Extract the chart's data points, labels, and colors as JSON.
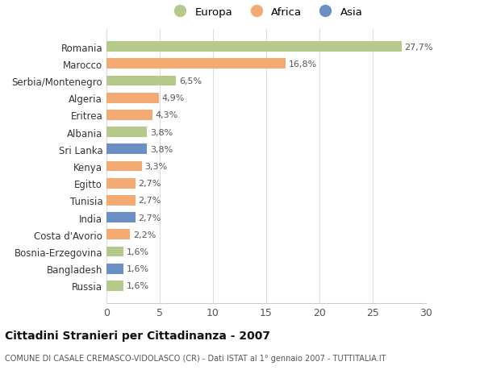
{
  "categories": [
    "Russia",
    "Bangladesh",
    "Bosnia-Erzegovina",
    "Costa d'Avorio",
    "India",
    "Tunisia",
    "Egitto",
    "Kenya",
    "Sri Lanka",
    "Albania",
    "Eritrea",
    "Algeria",
    "Serbia/Montenegro",
    "Marocco",
    "Romania"
  ],
  "values": [
    1.6,
    1.6,
    1.6,
    2.2,
    2.7,
    2.7,
    2.7,
    3.3,
    3.8,
    3.8,
    4.3,
    4.9,
    6.5,
    16.8,
    27.7
  ],
  "labels": [
    "1,6%",
    "1,6%",
    "1,6%",
    "2,2%",
    "2,7%",
    "2,7%",
    "2,7%",
    "3,3%",
    "3,8%",
    "3,8%",
    "4,3%",
    "4,9%",
    "6,5%",
    "16,8%",
    "27,7%"
  ],
  "colors": [
    "#b5c98a",
    "#6b8ec4",
    "#b5c98a",
    "#f2aa72",
    "#6b8ec4",
    "#f2aa72",
    "#f2aa72",
    "#f2aa72",
    "#6b8ec4",
    "#b5c98a",
    "#f2aa72",
    "#f2aa72",
    "#b5c98a",
    "#f2aa72",
    "#b5c98a"
  ],
  "legend_labels": [
    "Europa",
    "Africa",
    "Asia"
  ],
  "legend_colors": [
    "#b5c98a",
    "#f2aa72",
    "#6b8ec4"
  ],
  "title": "Cittadini Stranieri per Cittadinanza - 2007",
  "subtitle": "COMUNE DI CASALE CREMASCO-VIDOLASCO (CR) - Dati ISTAT al 1° gennaio 2007 - TUTTITALIA.IT",
  "xlim": [
    0,
    30
  ],
  "xticks": [
    0,
    5,
    10,
    15,
    20,
    25,
    30
  ],
  "background_color": "#ffffff",
  "plot_bg_color": "#ffffff"
}
